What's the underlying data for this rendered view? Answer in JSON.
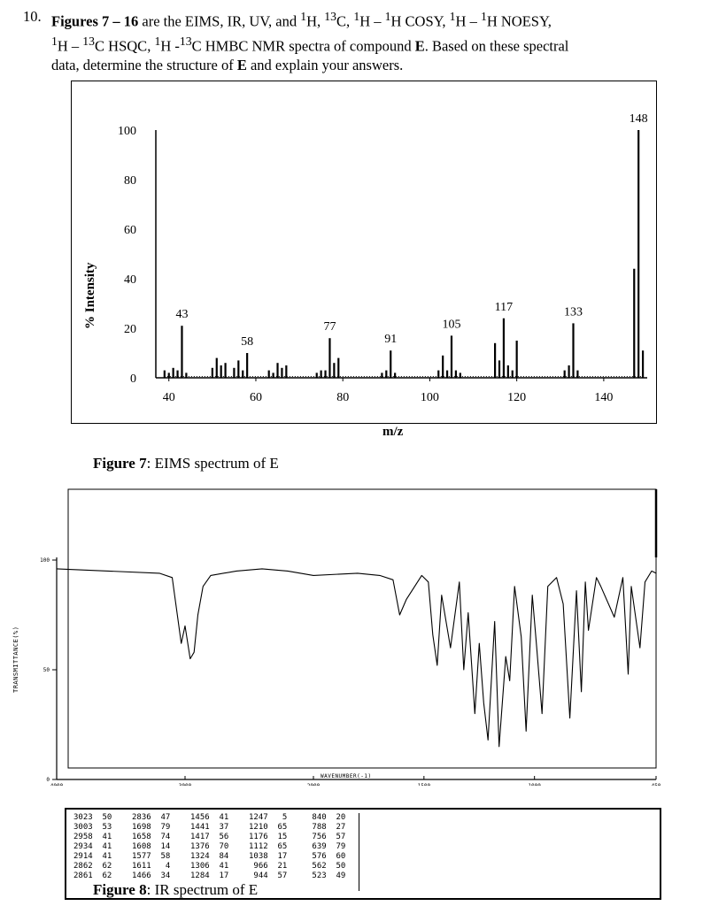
{
  "question": {
    "number": "10.",
    "line1_bold": "Figures 7 – 16",
    "line1_rest": " are the EIMS, IR, UV, and ",
    "line1_nuclei": [
      "1H,",
      "13C,",
      "1H – 1H COSY,",
      "1H – 1H NOESY,"
    ],
    "line2": "1H – 13C HSQC, 1H -13C HMBC NMR spectra of compound E. Based on these spectral",
    "line3": "data, determine the structure of E and explain your answers."
  },
  "figure7": {
    "caption_label": "Figure 7",
    "caption_text": ": EIMS spectrum of E",
    "chart_data": {
      "type": "bar",
      "title": "",
      "xlabel": "m/z",
      "ylabel": "% Intensity",
      "xlim": [
        37,
        150
      ],
      "ylim": [
        0,
        100
      ],
      "x_ticks": [
        40,
        60,
        80,
        100,
        120,
        140
      ],
      "y_ticks": [
        0,
        20,
        40,
        60,
        80,
        100
      ],
      "peak_labels": [
        {
          "x": 43,
          "label": "43"
        },
        {
          "x": 58,
          "label": "58"
        },
        {
          "x": 77,
          "label": "77"
        },
        {
          "x": 91,
          "label": "91"
        },
        {
          "x": 105,
          "label": "105"
        },
        {
          "x": 117,
          "label": "117"
        },
        {
          "x": 133,
          "label": "133"
        },
        {
          "x": 148,
          "label": "148"
        }
      ],
      "peaks": [
        {
          "x": 39,
          "y": 3
        },
        {
          "x": 40,
          "y": 2
        },
        {
          "x": 41,
          "y": 4
        },
        {
          "x": 42,
          "y": 3
        },
        {
          "x": 43,
          "y": 21
        },
        {
          "x": 44,
          "y": 2
        },
        {
          "x": 50,
          "y": 4
        },
        {
          "x": 51,
          "y": 8
        },
        {
          "x": 52,
          "y": 5
        },
        {
          "x": 53,
          "y": 6
        },
        {
          "x": 55,
          "y": 4
        },
        {
          "x": 56,
          "y": 7
        },
        {
          "x": 57,
          "y": 3
        },
        {
          "x": 58,
          "y": 10
        },
        {
          "x": 63,
          "y": 3
        },
        {
          "x": 64,
          "y": 2
        },
        {
          "x": 65,
          "y": 6
        },
        {
          "x": 66,
          "y": 4
        },
        {
          "x": 67,
          "y": 5
        },
        {
          "x": 74,
          "y": 2
        },
        {
          "x": 75,
          "y": 3
        },
        {
          "x": 76,
          "y": 3
        },
        {
          "x": 77,
          "y": 16
        },
        {
          "x": 78,
          "y": 6
        },
        {
          "x": 79,
          "y": 8
        },
        {
          "x": 89,
          "y": 2
        },
        {
          "x": 90,
          "y": 3
        },
        {
          "x": 91,
          "y": 11
        },
        {
          "x": 92,
          "y": 2
        },
        {
          "x": 102,
          "y": 3
        },
        {
          "x": 103,
          "y": 9
        },
        {
          "x": 104,
          "y": 3
        },
        {
          "x": 105,
          "y": 17
        },
        {
          "x": 106,
          "y": 3
        },
        {
          "x": 107,
          "y": 2
        },
        {
          "x": 115,
          "y": 14
        },
        {
          "x": 116,
          "y": 7
        },
        {
          "x": 117,
          "y": 24
        },
        {
          "x": 118,
          "y": 5
        },
        {
          "x": 119,
          "y": 3
        },
        {
          "x": 120,
          "y": 15
        },
        {
          "x": 131,
          "y": 3
        },
        {
          "x": 132,
          "y": 5
        },
        {
          "x": 133,
          "y": 22
        },
        {
          "x": 134,
          "y": 3
        },
        {
          "x": 147,
          "y": 44
        },
        {
          "x": 148,
          "y": 100
        },
        {
          "x": 149,
          "y": 11
        }
      ]
    }
  },
  "figure8": {
    "caption_label": "Figure 8",
    "caption_text": ": IR spectrum of E",
    "chart_data": {
      "type": "line",
      "title": "",
      "xlabel": "WAVENUMBER(-1)",
      "ylabel": "TRANSMITTANCE(%)",
      "x_tick_labels": [
        "4000",
        "3000",
        "2000",
        "1500",
        "1000",
        "450"
      ],
      "y_tick_labels": [
        "100",
        "50",
        "0"
      ],
      "xlim": [
        4000,
        450
      ],
      "ylim": [
        0,
        100
      ],
      "x": [
        4000,
        3600,
        3200,
        3100,
        3030,
        3000,
        2960,
        2930,
        2900,
        2860,
        2800,
        2600,
        2400,
        2200,
        2000,
        1800,
        1700,
        1640,
        1610,
        1580,
        1510,
        1480,
        1460,
        1440,
        1420,
        1380,
        1340,
        1320,
        1300,
        1270,
        1250,
        1230,
        1210,
        1180,
        1160,
        1130,
        1112,
        1090,
        1060,
        1038,
        1010,
        990,
        966,
        940,
        900,
        870,
        840,
        810,
        788,
        770,
        756,
        720,
        700,
        639,
        600,
        576,
        562,
        523,
        500,
        470,
        450
      ],
      "y": [
        96,
        95,
        94,
        92,
        62,
        70,
        55,
        58,
        75,
        88,
        93,
        95,
        96,
        95,
        93,
        94,
        93,
        91,
        75,
        82,
        93,
        90,
        66,
        52,
        84,
        60,
        90,
        50,
        76,
        30,
        62,
        35,
        18,
        72,
        15,
        56,
        45,
        88,
        65,
        22,
        84,
        60,
        30,
        88,
        92,
        80,
        28,
        86,
        40,
        90,
        68,
        92,
        88,
        74,
        92,
        48,
        88,
        60,
        90,
        95,
        94
      ]
    },
    "table": {
      "cols": [
        "3023  50\n3003  53\n2958  41\n2934  41\n2914  41\n2862  62\n2861  62",
        "2836  47\n1698  79\n1658  74\n1608  14\n1577  58\n1611   4\n1466  34",
        "1456  41\n1441  37\n1417  56\n1376  70\n1324  84\n1306  41\n1284  17",
        "1247   5\n1210  65\n1176  15\n1112  65\n1038  17\n 966  21\n 944  57",
        " 840  20\n 788  27\n 756  57\n 639  79\n 576  60\n 562  50\n 523  49"
      ]
    }
  }
}
